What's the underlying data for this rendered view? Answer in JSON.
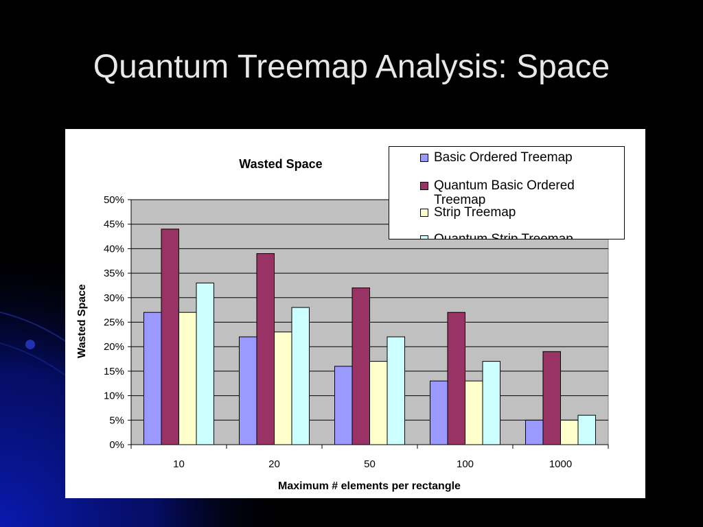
{
  "slide": {
    "title": "Quantum Treemap Analysis: Space",
    "background_color": "#000000",
    "accent_color": "#0a1aa8"
  },
  "chart_data": {
    "type": "bar",
    "title": "Wasted Space",
    "xlabel": "Maximum # elements per rectangle",
    "ylabel": "Wasted Space",
    "categories": [
      "10",
      "20",
      "50",
      "100",
      "1000"
    ],
    "ylim": [
      0,
      50
    ],
    "yticks": [
      "0%",
      "5%",
      "10%",
      "15%",
      "20%",
      "25%",
      "30%",
      "35%",
      "40%",
      "45%",
      "50%"
    ],
    "grid": true,
    "plot_background": "#c0c0c0",
    "legend_position": "top-right",
    "series": [
      {
        "name": "Basic Ordered Treemap",
        "color": "#9999ff",
        "values": [
          27,
          22,
          16,
          13,
          5
        ]
      },
      {
        "name": "Quantum Basic Ordered Treemap",
        "color": "#993366",
        "values": [
          44,
          39,
          32,
          27,
          19
        ]
      },
      {
        "name": "Strip Treemap",
        "color": "#ffffcc",
        "values": [
          27,
          23,
          17,
          13,
          5
        ]
      },
      {
        "name": "Quantum Strip Treemap",
        "color": "#ccffff",
        "values": [
          33,
          28,
          22,
          17,
          6
        ]
      }
    ]
  }
}
